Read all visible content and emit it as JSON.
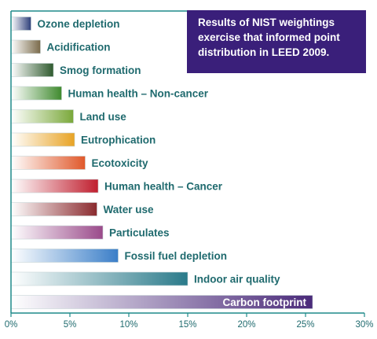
{
  "chart_data": {
    "type": "bar",
    "orientation": "horizontal",
    "title": "Results of NIST weightings exercise that informed point distribution in LEED 2009.",
    "categories": [
      "Ozone depletion",
      "Acidification",
      "Smog formation",
      "Human health – Non-cancer",
      "Land use",
      "Eutrophication",
      "Ecotoxicity",
      "Human health – Cancer",
      "Water use",
      "Particulates",
      "Fossil fuel depletion",
      "Indoor air quality",
      "Carbon footprint"
    ],
    "values": [
      1.7,
      2.5,
      3.6,
      4.3,
      5.3,
      5.4,
      6.3,
      7.4,
      7.3,
      7.8,
      9.1,
      15.0,
      25.6
    ],
    "xlim": [
      0,
      30
    ],
    "x_ticks": [
      "0%",
      "5%",
      "10%",
      "15%",
      "20%",
      "25%",
      "30%"
    ],
    "bar_colors": [
      "#2e3f7a",
      "#7a6a4a",
      "#2f5a2e",
      "#3f8a2e",
      "#7aa83a",
      "#e8a324",
      "#e0582a",
      "#c01e2e",
      "#8a2a2e",
      "#9a4a8a",
      "#3a7ec8",
      "#2a7a8a",
      "#4a2a7a"
    ],
    "frame_color": "#1f8a8a",
    "label_color": "#1f6a6e",
    "grid": false
  }
}
